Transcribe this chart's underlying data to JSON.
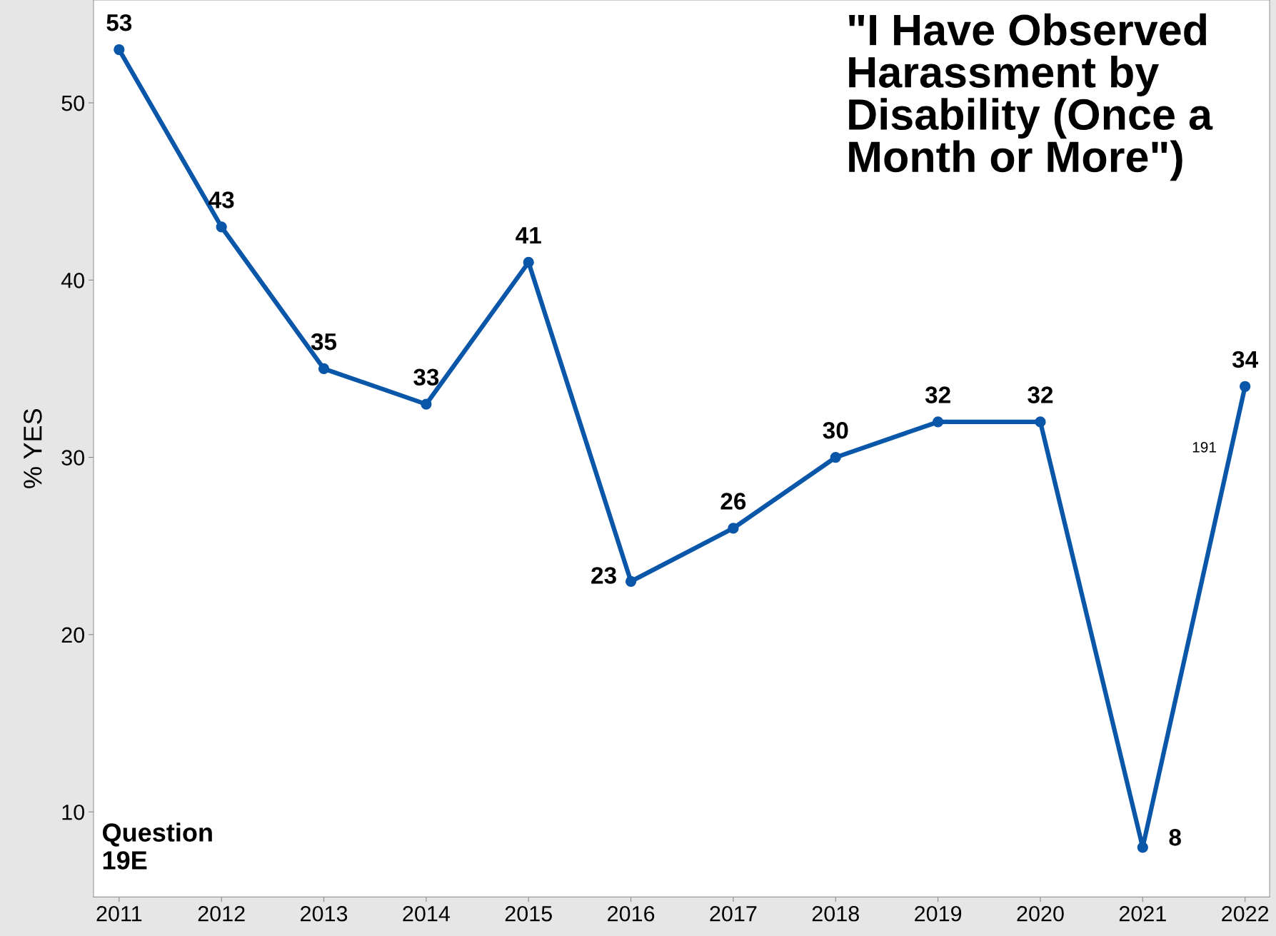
{
  "chart_data": {
    "type": "line",
    "title": "\"I Have Observed\nHarassment by\nDisability (Once a\nMonth or More\")",
    "ylabel": "% YES",
    "x": [
      2011,
      2012,
      2013,
      2014,
      2015,
      2016,
      2017,
      2018,
      2019,
      2020,
      2021,
      2022
    ],
    "series": [
      {
        "color": "#0a56a8",
        "values": [
          53,
          43,
          35,
          33,
          41,
          23,
          26,
          30,
          32,
          32,
          8,
          34
        ]
      }
    ],
    "xlim": [
      2010.75,
      2022.24
    ],
    "xticks": [
      2011,
      2012,
      2013,
      2014,
      2015,
      2016,
      2017,
      2018,
      2019,
      2020,
      2021,
      2022
    ],
    "ylim": [
      5.2,
      55.8
    ],
    "yticks": [
      10,
      20,
      30,
      40,
      50
    ],
    "annotations": [
      "Question\n19E",
      "191"
    ],
    "data_labels": true,
    "marker": "circle",
    "line_style": "solid",
    "grid": false,
    "legend": false
  }
}
